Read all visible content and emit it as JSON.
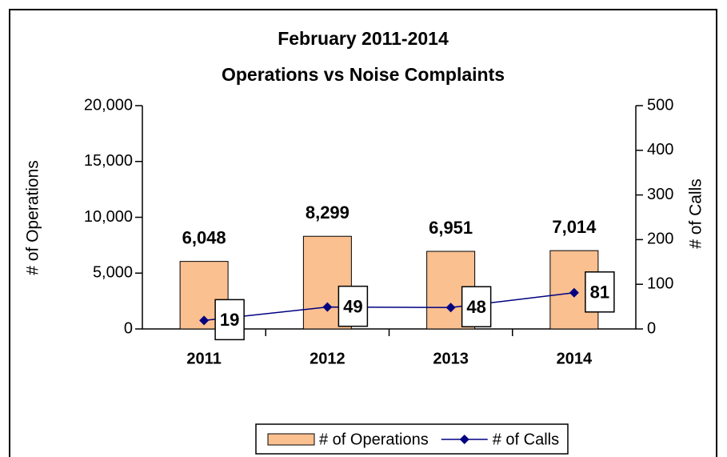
{
  "chart_data": {
    "type": "bar-line",
    "title": "February 2011-2014",
    "subtitle": "Operations vs Noise Complaints",
    "y_label": "# of Operations",
    "y2_label": "# of Calls",
    "categories": [
      "2011",
      "2012",
      "2013",
      "2014"
    ],
    "series": [
      {
        "name": "# of Operations",
        "type": "bar",
        "color": "#fac090",
        "values": [
          6048,
          8299,
          6951,
          7014
        ],
        "value_labels": [
          "6,048",
          "8,299",
          "6,951",
          "7,014"
        ]
      },
      {
        "name": "# of Calls",
        "type": "line",
        "axis": "y2",
        "color": "#000080",
        "values": [
          19,
          49,
          48,
          81
        ]
      }
    ],
    "ylim": [
      0,
      20000
    ],
    "yticks": [
      0,
      {
        "value": 5000,
        "label": "5,000"
      },
      {
        "value": 10000,
        "label": "10,000"
      },
      {
        "value": 15000,
        "label": "15,000"
      },
      {
        "value": 20000,
        "label": "20,000"
      }
    ],
    "y2lim": [
      0,
      500
    ],
    "y2ticks": [
      0,
      100,
      200,
      300,
      400,
      500
    ],
    "legend": "bottom"
  }
}
